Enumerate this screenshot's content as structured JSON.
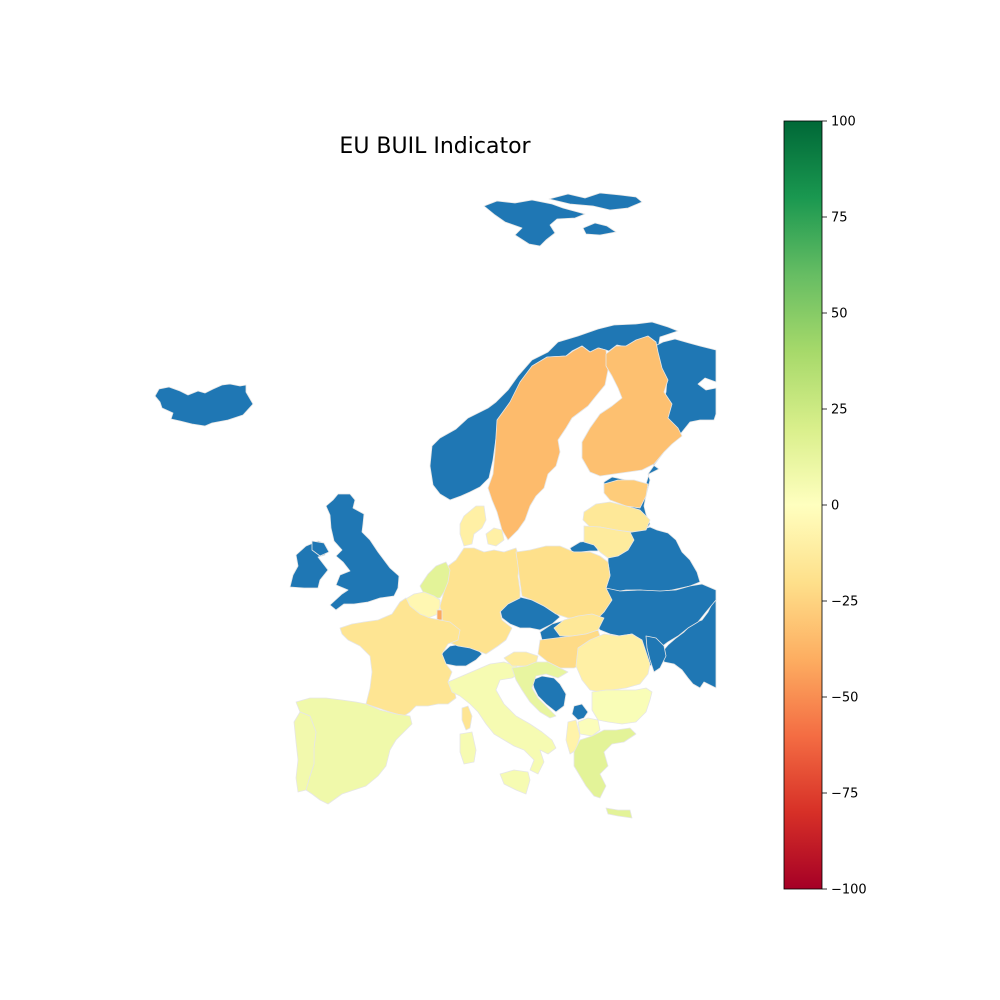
{
  "title": "EU BUIL Indicator",
  "colors": {
    "no_data": "#1f77b4",
    "border": "#e6e6e6",
    "scale": [
      "#a50026",
      "#d73027",
      "#f46d43",
      "#fdae61",
      "#fee08b",
      "#ffffbf",
      "#d9ef8b",
      "#a6d96a",
      "#66bd63",
      "#1a9850",
      "#006837"
    ]
  },
  "colorbar": {
    "min": -100,
    "max": 100,
    "ticks": [
      {
        "value": 100,
        "label": "100"
      },
      {
        "value": 75,
        "label": "75"
      },
      {
        "value": 50,
        "label": "50"
      },
      {
        "value": 25,
        "label": "25"
      },
      {
        "value": 0,
        "label": "0"
      },
      {
        "value": -25,
        "label": "−25"
      },
      {
        "value": -50,
        "label": "−50"
      },
      {
        "value": -75,
        "label": "−75"
      },
      {
        "value": -100,
        "label": "−100"
      }
    ]
  },
  "chart_data": {
    "type": "choropleth",
    "title": "EU BUIL Indicator",
    "colorbar_range": [
      -100,
      100
    ],
    "no_data_regions": [
      "Norway",
      "Iceland",
      "Svalbard",
      "United Kingdom",
      "Ireland",
      "Switzerland",
      "Czechia",
      "Austria",
      "Russia",
      "Belarus",
      "Ukraine",
      "Moldova",
      "Serbia",
      "Bosnia and Herzegovina",
      "Montenegro",
      "Kosovo"
    ],
    "regions": [
      {
        "name": "Sweden",
        "value": -35
      },
      {
        "name": "Finland",
        "value": -33
      },
      {
        "name": "Estonia",
        "value": -28
      },
      {
        "name": "Latvia",
        "value": -15
      },
      {
        "name": "Lithuania",
        "value": -13
      },
      {
        "name": "Denmark",
        "value": -10
      },
      {
        "name": "Germany",
        "value": -18
      },
      {
        "name": "Poland",
        "value": -20
      },
      {
        "name": "Netherlands",
        "value": 15
      },
      {
        "name": "Belgium",
        "value": -5
      },
      {
        "name": "Luxembourg",
        "value": -42
      },
      {
        "name": "France",
        "value": -17
      },
      {
        "name": "Spain",
        "value": 8
      },
      {
        "name": "Portugal",
        "value": 7
      },
      {
        "name": "Italy",
        "value": 5
      },
      {
        "name": "Slovakia",
        "value": -15
      },
      {
        "name": "Hungary",
        "value": -22
      },
      {
        "name": "Slovenia",
        "value": -12
      },
      {
        "name": "Croatia",
        "value": 12
      },
      {
        "name": "Romania",
        "value": -10
      },
      {
        "name": "Bulgaria",
        "value": 3
      },
      {
        "name": "Greece",
        "value": 15
      },
      {
        "name": "North Macedonia",
        "value": 2
      },
      {
        "name": "Albania",
        "value": -8
      },
      {
        "name": "Cyprus",
        "value": 10
      }
    ]
  }
}
